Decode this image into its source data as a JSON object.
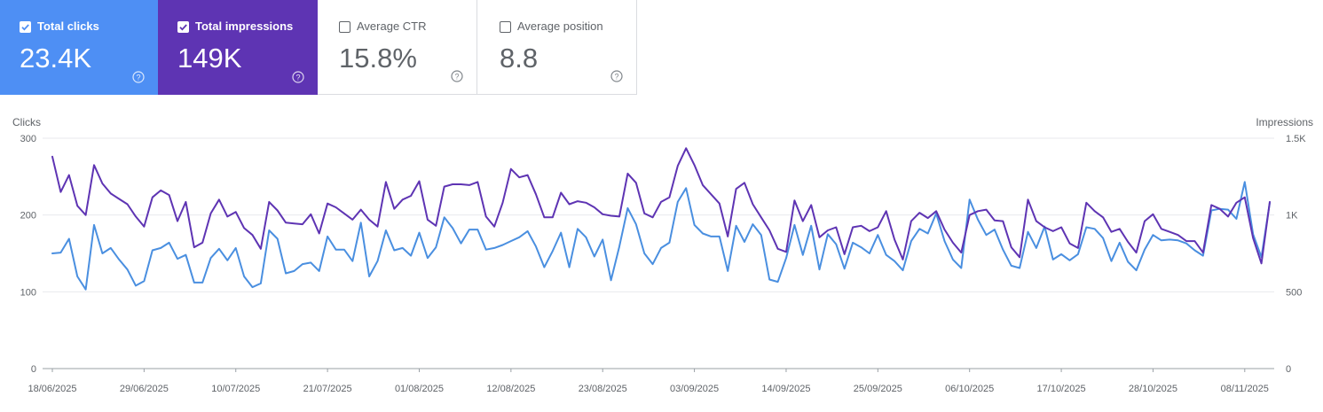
{
  "cards": {
    "clicks": {
      "label": "Total clicks",
      "value": "23.4K",
      "checked": true,
      "color": "#4e8ff4"
    },
    "impressions": {
      "label": "Total impressions",
      "value": "149K",
      "checked": true,
      "color": "#5e34b3"
    },
    "ctr": {
      "label": "Average CTR",
      "value": "15.8%",
      "checked": false
    },
    "position": {
      "label": "Average position",
      "value": "8.8",
      "checked": false
    }
  },
  "chart_data": {
    "type": "line",
    "left_axis_title": "Clicks",
    "right_axis_title": "Impressions",
    "left_ticks": [
      {
        "value": 0,
        "label": "0"
      },
      {
        "value": 100,
        "label": "100"
      },
      {
        "value": 200,
        "label": "200"
      },
      {
        "value": 300,
        "label": "300"
      }
    ],
    "right_ticks": [
      {
        "value": 0,
        "label": "0"
      },
      {
        "value": 500,
        "label": "500"
      },
      {
        "value": 1000,
        "label": "1K"
      },
      {
        "value": 1500,
        "label": "1.5K"
      }
    ],
    "left_range": [
      0,
      300
    ],
    "right_range": [
      0,
      1500
    ],
    "x_start": "18/06/2025",
    "x_end": "10/11/2025",
    "x_tick_labels": [
      "18/06/2025",
      "29/06/2025",
      "10/07/2025",
      "21/07/2025",
      "01/08/2025",
      "12/08/2025",
      "23/08/2025",
      "03/09/2025",
      "14/09/2025",
      "25/09/2025",
      "06/10/2025",
      "17/10/2025",
      "28/10/2025",
      "08/11/2025"
    ],
    "grid": true,
    "series": [
      {
        "name": "Total clicks",
        "axis": "left",
        "color": "#4a8fe0",
        "values": [
          150,
          151,
          169,
          120,
          103,
          187,
          150,
          157,
          142,
          129,
          108,
          114,
          154,
          157,
          164,
          143,
          148,
          112,
          112,
          144,
          156,
          141,
          157,
          120,
          106,
          111,
          180,
          169,
          124,
          127,
          136,
          138,
          127,
          172,
          155,
          155,
          140,
          190,
          120,
          140,
          180,
          154,
          157,
          147,
          177,
          144,
          158,
          197,
          183,
          163,
          181,
          181,
          155,
          157,
          161,
          166,
          171,
          179,
          159,
          132,
          153,
          177,
          132,
          182,
          171,
          146,
          168,
          115,
          159,
          209,
          188,
          150,
          136,
          157,
          164,
          217,
          235,
          187,
          176,
          172,
          172,
          127,
          186,
          165,
          188,
          174,
          116,
          113,
          144,
          187,
          148,
          186,
          129,
          175,
          162,
          130,
          164,
          158,
          150,
          174,
          148,
          140,
          128,
          166,
          182,
          176,
          202,
          166,
          142,
          131,
          220,
          194,
          174,
          181,
          155,
          134,
          131,
          178,
          157,
          185,
          142,
          149,
          141,
          149,
          184,
          182,
          170,
          140,
          164,
          139,
          128,
          155,
          174,
          167,
          168,
          167,
          163,
          154,
          147,
          206,
          208,
          207,
          195,
          243,
          175,
          145,
          216
        ]
      },
      {
        "name": "Total impressions",
        "axis": "right",
        "color": "#5e34b3",
        "values": [
          1380,
          1150,
          1260,
          1060,
          1000,
          1325,
          1205,
          1140,
          1105,
          1070,
          990,
          925,
          1115,
          1160,
          1130,
          960,
          1085,
          790,
          820,
          1010,
          1100,
          990,
          1020,
          915,
          870,
          780,
          1085,
          1030,
          950,
          945,
          940,
          1005,
          880,
          1075,
          1050,
          1010,
          970,
          1035,
          970,
          925,
          1215,
          1040,
          1100,
          1125,
          1220,
          970,
          930,
          1185,
          1200,
          1200,
          1195,
          1215,
          990,
          925,
          1080,
          1300,
          1245,
          1260,
          1135,
          985,
          985,
          1145,
          1070,
          1090,
          1080,
          1050,
          1005,
          995,
          990,
          1270,
          1210,
          1010,
          985,
          1085,
          1115,
          1320,
          1435,
          1325,
          1195,
          1135,
          1075,
          860,
          1170,
          1210,
          1070,
          985,
          900,
          780,
          760,
          1095,
          960,
          1065,
          855,
          900,
          920,
          745,
          920,
          930,
          895,
          920,
          1025,
          840,
          710,
          960,
          1015,
          980,
          1025,
          905,
          820,
          755,
          1000,
          1025,
          1035,
          965,
          960,
          790,
          725,
          1100,
          960,
          920,
          895,
          920,
          815,
          785,
          1080,
          1025,
          985,
          890,
          910,
          825,
          755,
          960,
          1005,
          910,
          890,
          870,
          830,
          830,
          755,
          1065,
          1040,
          990,
          1080,
          1115,
          850,
          685,
          1085
        ]
      }
    ]
  }
}
